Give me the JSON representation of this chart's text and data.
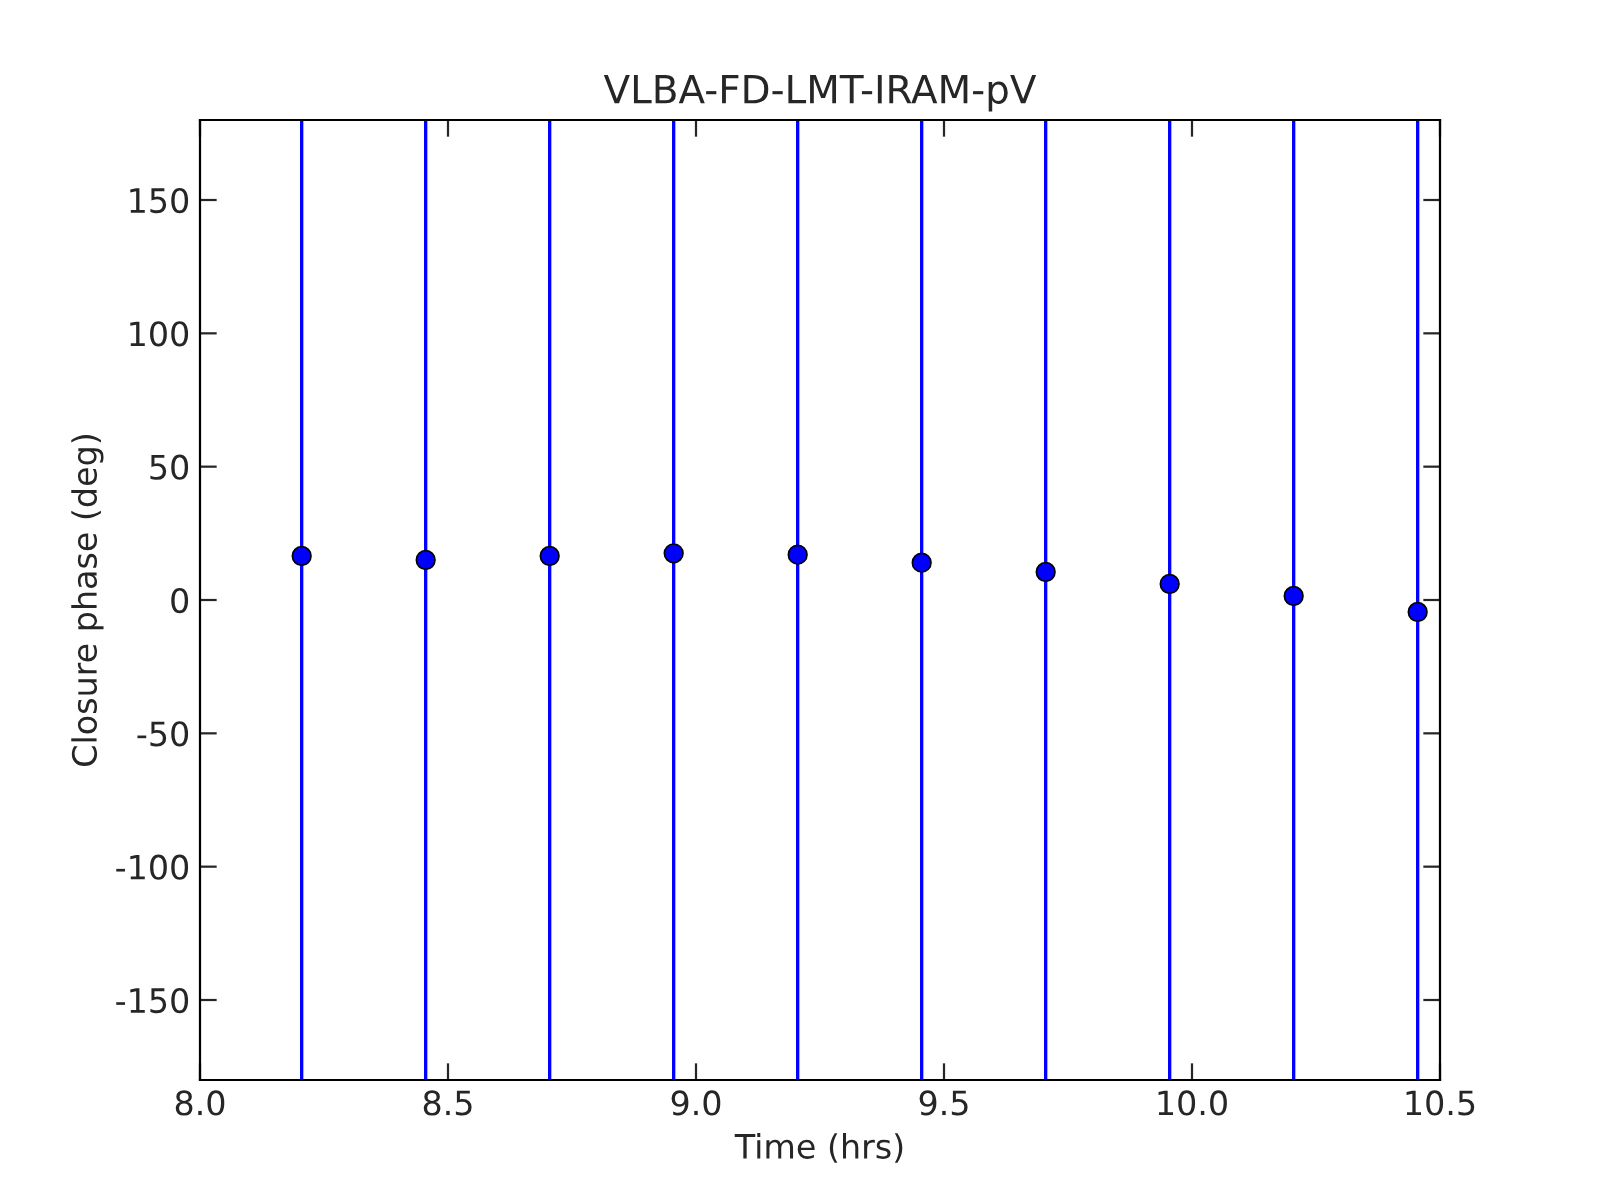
{
  "chart_data": {
    "type": "scatter",
    "title": "VLBA-FD-LMT-IRAM-pV",
    "xlabel": "Time (hrs)",
    "ylabel": "Closure phase (deg)",
    "x": [
      8.205,
      8.455,
      8.705,
      8.955,
      9.205,
      9.455,
      9.705,
      9.955,
      10.205,
      10.455
    ],
    "values": [
      16.5,
      15,
      16.5,
      17.5,
      17,
      14,
      10.5,
      6,
      1.5,
      -4.5
    ],
    "errors": [
      [
        -180,
        180
      ],
      [
        -180,
        180
      ],
      [
        -180,
        180
      ],
      [
        -180,
        180
      ],
      [
        -180,
        180
      ],
      [
        -180,
        180
      ],
      [
        -180,
        180
      ],
      [
        -180,
        180
      ],
      [
        -180,
        180
      ],
      [
        -180,
        180
      ]
    ],
    "color": "#0000ff",
    "marker": "circle",
    "xlim": [
      8.0,
      10.5
    ],
    "xticks": [
      {
        "value": 8.0,
        "label": "8.0"
      },
      {
        "value": 8.5,
        "label": "8.5"
      },
      {
        "value": 9.0,
        "label": "9.0"
      },
      {
        "value": 9.5,
        "label": "9.5"
      },
      {
        "value": 10.0,
        "label": "10.0"
      },
      {
        "value": 10.5,
        "label": "10.5"
      }
    ],
    "ylim": [
      -180,
      180
    ],
    "yticks": [
      -150,
      -100,
      -50,
      0,
      50,
      100,
      150
    ],
    "grid": false
  }
}
